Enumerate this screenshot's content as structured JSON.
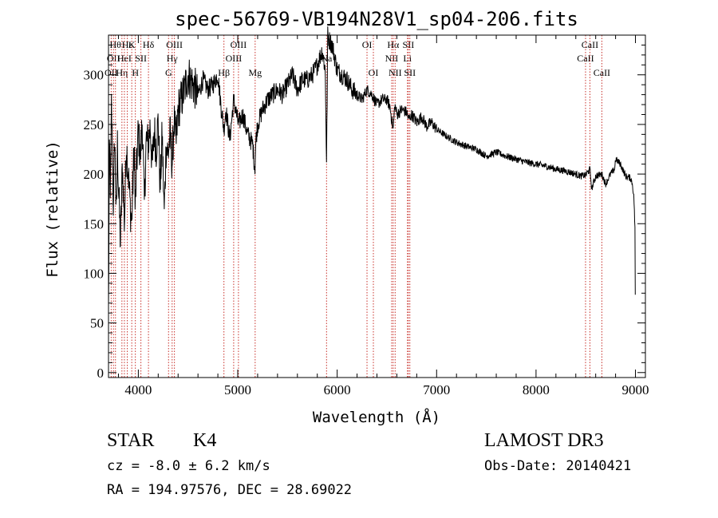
{
  "chart_data": {
    "type": "line",
    "title": "spec-56769-VB194N28V1_sp04-206.fits",
    "xlabel": "Wavelength (Å)",
    "ylabel": "Flux (relative)",
    "xlim": [
      3700,
      9100
    ],
    "ylim": [
      -5,
      340
    ],
    "x_ticks": [
      {
        "value": 4000,
        "label": "4000"
      },
      {
        "value": 5000,
        "label": "5000"
      },
      {
        "value": 6000,
        "label": "6000"
      },
      {
        "value": 7000,
        "label": "7000"
      },
      {
        "value": 8000,
        "label": "8000"
      },
      {
        "value": 9000,
        "label": "9000"
      }
    ],
    "y_ticks": [
      {
        "value": 0,
        "label": "0"
      },
      {
        "value": 50,
        "label": "50"
      },
      {
        "value": 100,
        "label": "100"
      },
      {
        "value": 150,
        "label": "150"
      },
      {
        "value": 200,
        "label": "200"
      },
      {
        "value": 250,
        "label": "250"
      },
      {
        "value": 300,
        "label": "300"
      }
    ],
    "series": [
      {
        "name": "spectrum",
        "x": [
          3700,
          3710,
          3720,
          3730,
          3740,
          3750,
          3760,
          3770,
          3780,
          3790,
          3800,
          3820,
          3840,
          3860,
          3880,
          3900,
          3920,
          3933,
          3945,
          3960,
          3968,
          3980,
          4000,
          4020,
          4040,
          4060,
          4080,
          4101,
          4120,
          4140,
          4160,
          4180,
          4200,
          4220,
          4240,
          4260,
          4280,
          4300,
          4320,
          4340,
          4360,
          4380,
          4400,
          4450,
          4500,
          4550,
          4600,
          4650,
          4700,
          4750,
          4800,
          4830,
          4861,
          4880,
          4920,
          4959,
          5007,
          5050,
          5100,
          5150,
          5172,
          5183,
          5200,
          5250,
          5300,
          5350,
          5400,
          5450,
          5500,
          5550,
          5600,
          5650,
          5700,
          5750,
          5800,
          5850,
          5880,
          5893,
          5905,
          5920,
          5950,
          6000,
          6050,
          6100,
          6150,
          6200,
          6250,
          6300,
          6350,
          6400,
          6450,
          6500,
          6530,
          6563,
          6580,
          6600,
          6650,
          6700,
          6720,
          6750,
          6800,
          6850,
          6900,
          6950,
          7000,
          7100,
          7200,
          7300,
          7400,
          7500,
          7600,
          7700,
          7800,
          7900,
          8000,
          8100,
          8200,
          8300,
          8400,
          8450,
          8500,
          8542,
          8560,
          8600,
          8662,
          8700,
          8750,
          8790,
          8800,
          8850,
          8900,
          8950,
          8970,
          8985,
          8995,
          9000
        ],
        "values": [
          60,
          230,
          180,
          270,
          215,
          160,
          240,
          200,
          150,
          230,
          190,
          130,
          210,
          150,
          230,
          200,
          165,
          150,
          190,
          230,
          160,
          200,
          245,
          215,
          255,
          170,
          235,
          230,
          250,
          205,
          245,
          225,
          255,
          185,
          240,
          160,
          230,
          220,
          240,
          210,
          255,
          230,
          265,
          280,
          300,
          290,
          280,
          295,
          285,
          290,
          300,
          270,
          245,
          265,
          235,
          275,
          250,
          260,
          240,
          230,
          205,
          235,
          250,
          265,
          275,
          280,
          285,
          280,
          290,
          300,
          285,
          295,
          295,
          300,
          310,
          325,
          305,
          210,
          340,
          335,
          330,
          305,
          300,
          295,
          285,
          280,
          275,
          285,
          280,
          270,
          275,
          275,
          268,
          245,
          270,
          260,
          265,
          262,
          255,
          260,
          252,
          258,
          248,
          252,
          245,
          238,
          232,
          228,
          225,
          218,
          222,
          218,
          215,
          212,
          210,
          208,
          205,
          203,
          200,
          198,
          199,
          205,
          185,
          198,
          200,
          190,
          200,
          205,
          215,
          210,
          198,
          196,
          190,
          175,
          145,
          30
        ]
      }
    ],
    "line_markers": [
      {
        "wl": 3727,
        "label": "OII",
        "row": 2
      },
      {
        "wl": 3750,
        "label": "OII",
        "row": 1
      },
      {
        "wl": 3770,
        "label": "Hθ",
        "row": 0
      },
      {
        "wl": 3835,
        "label": "Hη",
        "row": 2
      },
      {
        "wl": 3860,
        "label": "HeI",
        "row": 1
      },
      {
        "wl": 3889,
        "label": "Hε",
        "row": 0
      },
      {
        "wl": 3934,
        "label": "K",
        "row": 0
      },
      {
        "wl": 3970,
        "label": "H",
        "row": 2
      },
      {
        "wl": 4026,
        "label": "SII",
        "row": 1
      },
      {
        "wl": 4102,
        "label": "Hδ",
        "row": 0
      },
      {
        "wl": 4304,
        "label": "G",
        "row": 2
      },
      {
        "wl": 4340,
        "label": "Hγ",
        "row": 1
      },
      {
        "wl": 4363,
        "label": "OIII",
        "row": 0
      },
      {
        "wl": 4861,
        "label": "Hβ",
        "row": 2
      },
      {
        "wl": 4959,
        "label": "OIII",
        "row": 1
      },
      {
        "wl": 5007,
        "label": "OIII",
        "row": 0
      },
      {
        "wl": 5175,
        "label": "Mg",
        "row": 2
      },
      {
        "wl": 5893,
        "label": "Na",
        "row": 1
      },
      {
        "wl": 6300,
        "label": "OI",
        "row": 0
      },
      {
        "wl": 6364,
        "label": "OI",
        "row": 2
      },
      {
        "wl": 6548,
        "label": "NII",
        "row": 1
      },
      {
        "wl": 6563,
        "label": "Hα",
        "row": 0
      },
      {
        "wl": 6583,
        "label": "NII",
        "row": 2
      },
      {
        "wl": 6707,
        "label": "Li",
        "row": 1
      },
      {
        "wl": 6716,
        "label": "SII",
        "row": 0
      },
      {
        "wl": 6731,
        "label": "SII",
        "row": 2
      },
      {
        "wl": 8498,
        "label": "CaII",
        "row": 1
      },
      {
        "wl": 8542,
        "label": "CaII",
        "row": 0
      },
      {
        "wl": 8662,
        "label": "CaII",
        "row": 2
      }
    ]
  },
  "info": {
    "class": "STAR",
    "subclass": "K4",
    "survey": "LAMOST DR3",
    "cz": "cz = -8.0 ± 6.2 km/s",
    "obs_date": "Obs-Date: 20140421",
    "radec": "RA = 194.97576, DEC =  28.69022"
  }
}
